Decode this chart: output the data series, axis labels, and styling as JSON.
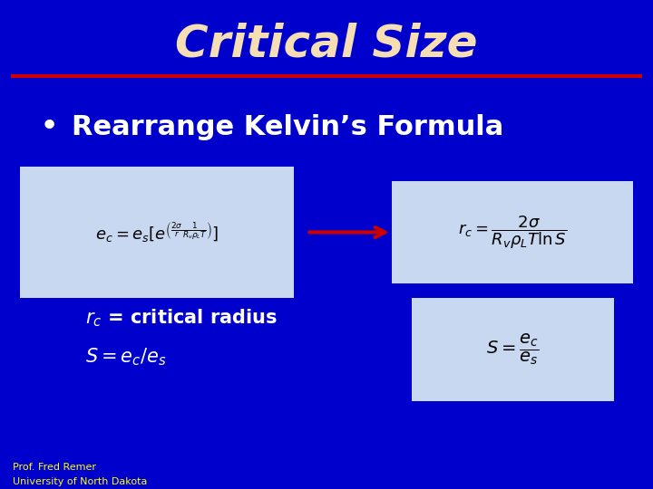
{
  "background_color": "#0000CC",
  "title": "Critical Size",
  "title_color": "#F5DEB3",
  "title_fontsize": 36,
  "red_line_y": 0.845,
  "bullet_text": "Rearrange Kelvin’s Formula",
  "bullet_color": "white",
  "bullet_fontsize": 22,
  "formula_box1_color": "#C8D8F0",
  "formula_box2_color": "#C8D8F0",
  "formula_box3_color": "#C8D8F0",
  "arrow_color": "#CC0000",
  "label1": "$r_c$ = critical radius",
  "label2": "$S = e_c/e_s$",
  "label_color": "white",
  "label_fontsize": 15,
  "footer1": "Prof. Fred Remer",
  "footer2": "University of North Dakota",
  "footer_color": "yellow",
  "footer_fontsize": 8
}
